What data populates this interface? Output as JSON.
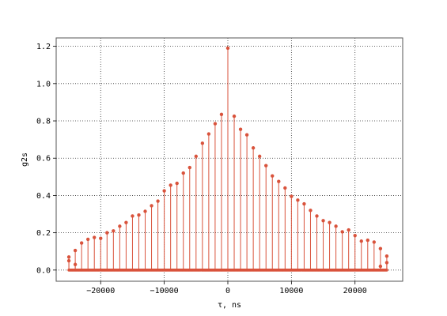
{
  "chart_data": {
    "type": "stem",
    "title": "",
    "xlabel": "τ, ns",
    "ylabel": "g2s",
    "xlim": [
      -27000,
      27500
    ],
    "ylim": [
      -0.06,
      1.245
    ],
    "xticks": [
      -20000,
      -10000,
      0,
      10000,
      20000
    ],
    "xtick_labels": [
      "−20000",
      "−10000",
      "0",
      "10000",
      "20000"
    ],
    "yticks": [
      0.0,
      0.2,
      0.4,
      0.6,
      0.8,
      1.0,
      1.2
    ],
    "ytick_labels": [
      "0.0",
      "0.2",
      "0.4",
      "0.6",
      "0.8",
      "1.0",
      "1.2"
    ],
    "grid": true,
    "grid_style": "dotted",
    "colors": {
      "stem": "#d9533c",
      "axes": "#555555",
      "grid": "#333333"
    },
    "x": [
      -25000,
      -25000,
      -24000,
      -24000,
      -23000,
      -22000,
      -21000,
      -20000,
      -19000,
      -18000,
      -17000,
      -16000,
      -15000,
      -14000,
      -13000,
      -12000,
      -11000,
      -10000,
      -9000,
      -8000,
      -7000,
      -6000,
      -5000,
      -4000,
      -3000,
      -2000,
      -1000,
      0,
      1000,
      2000,
      3000,
      4000,
      5000,
      6000,
      7000,
      8000,
      9000,
      10000,
      11000,
      12000,
      13000,
      14000,
      15000,
      16000,
      17000,
      18000,
      19000,
      20000,
      21000,
      22000,
      23000,
      24000,
      24000,
      25000,
      25000
    ],
    "y": [
      0.07,
      0.05,
      0.105,
      0.03,
      0.145,
      0.165,
      0.175,
      0.17,
      0.2,
      0.21,
      0.235,
      0.255,
      0.29,
      0.295,
      0.315,
      0.345,
      0.37,
      0.425,
      0.455,
      0.465,
      0.52,
      0.55,
      0.61,
      0.68,
      0.73,
      0.785,
      0.835,
      1.19,
      0.825,
      0.755,
      0.725,
      0.655,
      0.61,
      0.56,
      0.505,
      0.475,
      0.44,
      0.395,
      0.375,
      0.355,
      0.32,
      0.29,
      0.265,
      0.255,
      0.235,
      0.205,
      0.215,
      0.185,
      0.155,
      0.16,
      0.15,
      0.115,
      0.02,
      0.075,
      0.04
    ],
    "baseline_x_range": [
      -25000,
      25000
    ],
    "baseline_step": 100,
    "baseline_value": 0.0
  }
}
